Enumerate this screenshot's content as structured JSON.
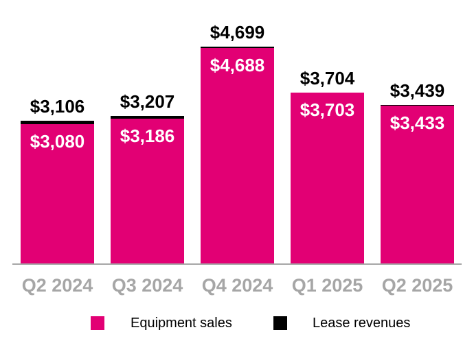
{
  "chart_data": {
    "type": "bar",
    "stacked": true,
    "title": "",
    "xlabel": "",
    "ylabel": "",
    "grid": false,
    "legend_position": "bottom",
    "ylim": [
      0,
      4699
    ],
    "categories": [
      "Q2 2024",
      "Q3 2024",
      "Q4 2024",
      "Q1 2025",
      "Q2 2025"
    ],
    "series": [
      {
        "name": "Equipment sales",
        "color": "#E20074",
        "values": [
          3080,
          3186,
          4688,
          3703,
          3433
        ],
        "labels": [
          "$3,080",
          "$3,186",
          "$4,688",
          "$3,703",
          "$3,433"
        ],
        "label_color": "#FFFFFF"
      },
      {
        "name": "Lease revenues",
        "color": "#000000",
        "values": [
          26,
          21,
          11,
          1,
          6
        ]
      }
    ],
    "totals": [
      3106,
      3207,
      4699,
      3704,
      3439
    ],
    "total_labels": [
      "$3,106",
      "$3,207",
      "$4,699",
      "$3,704",
      "$3,439"
    ],
    "total_label_color": "#000000",
    "axis_label_color": "#A6A6A6",
    "axis_line_color": "#A6A6A6",
    "background_color": "#FFFFFF"
  }
}
